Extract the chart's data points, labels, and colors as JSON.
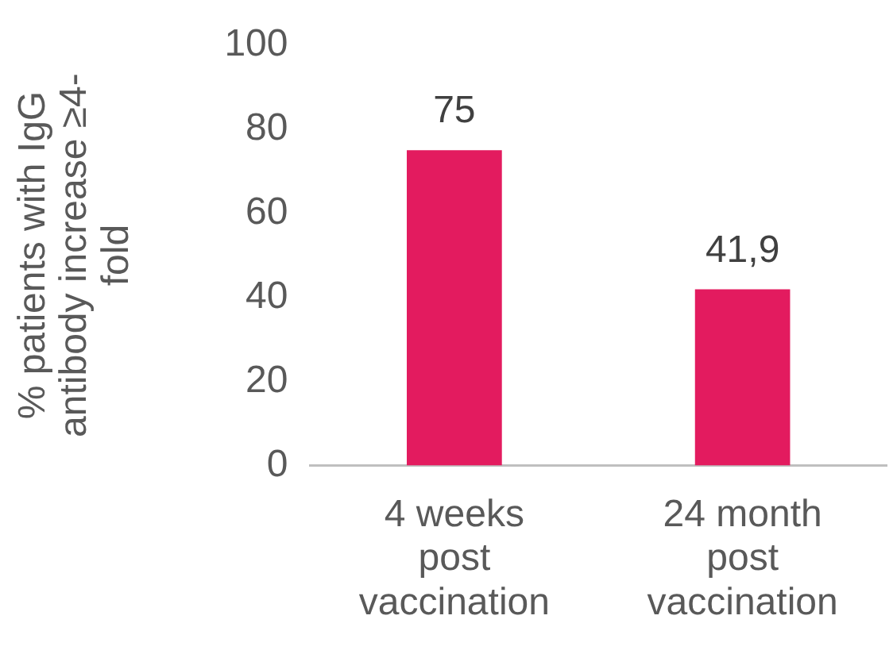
{
  "chart_data": {
    "type": "bar",
    "ylabel": "% patients with IgG antibody increase ≥4-fold",
    "categories": [
      "4 weeks post vaccination",
      "24 month post vaccination"
    ],
    "values": [
      75,
      41.9
    ],
    "value_labels": [
      "75",
      "41,9"
    ],
    "color": "#e31b5f",
    "ylim": [
      0,
      100
    ],
    "yticks": [
      0,
      20,
      40,
      60,
      80,
      100
    ],
    "grid": false,
    "legend": false
  }
}
